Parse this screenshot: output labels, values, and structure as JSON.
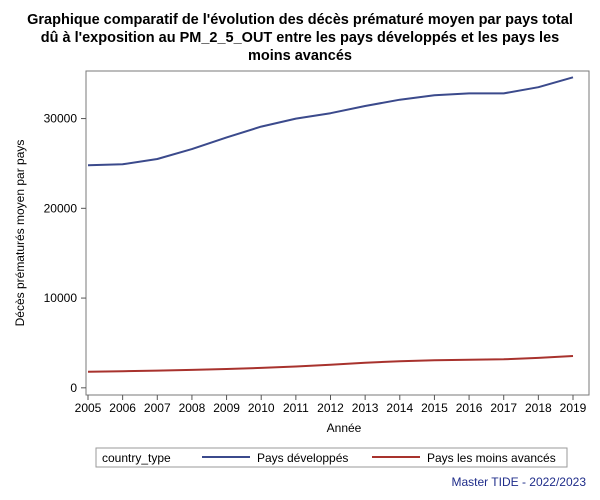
{
  "title_lines": [
    "Graphique comparatif de l'évolution des décès prématuré moyen par pays total",
    "dû à l'exposition au PM_2_5_OUT entre les pays développés et les pays les",
    "moins avancés"
  ],
  "footnote": "Master TIDE - 2022/2023",
  "legend": {
    "title": "country_type",
    "position": "bottom",
    "entries": [
      {
        "label": "Pays développés",
        "color": "#3b4a8c"
      },
      {
        "label": "Pays les moins avancés",
        "color": "#a8322d"
      }
    ]
  },
  "chart_data": {
    "type": "line",
    "xlabel": "Année",
    "ylabel": "Décès prématurés moyen par pays",
    "x": [
      2005,
      2006,
      2007,
      2008,
      2009,
      2010,
      2011,
      2012,
      2013,
      2014,
      2015,
      2016,
      2017,
      2018,
      2019
    ],
    "xlim": [
      2005,
      2019
    ],
    "ylim": [
      -800,
      35300
    ],
    "yticks": [
      0,
      10000,
      20000,
      30000
    ],
    "grid": false,
    "series": [
      {
        "name": "Pays développés",
        "color": "#3b4a8c",
        "values": [
          24800,
          24900,
          25500,
          26600,
          27900,
          29100,
          30000,
          30600,
          31400,
          32100,
          32600,
          32800,
          32800,
          33500,
          34600
        ]
      },
      {
        "name": "Pays les moins avancés",
        "color": "#a8322d",
        "values": [
          1800,
          1850,
          1920,
          2000,
          2100,
          2220,
          2380,
          2580,
          2800,
          2970,
          3080,
          3120,
          3180,
          3330,
          3550
        ]
      }
    ]
  }
}
